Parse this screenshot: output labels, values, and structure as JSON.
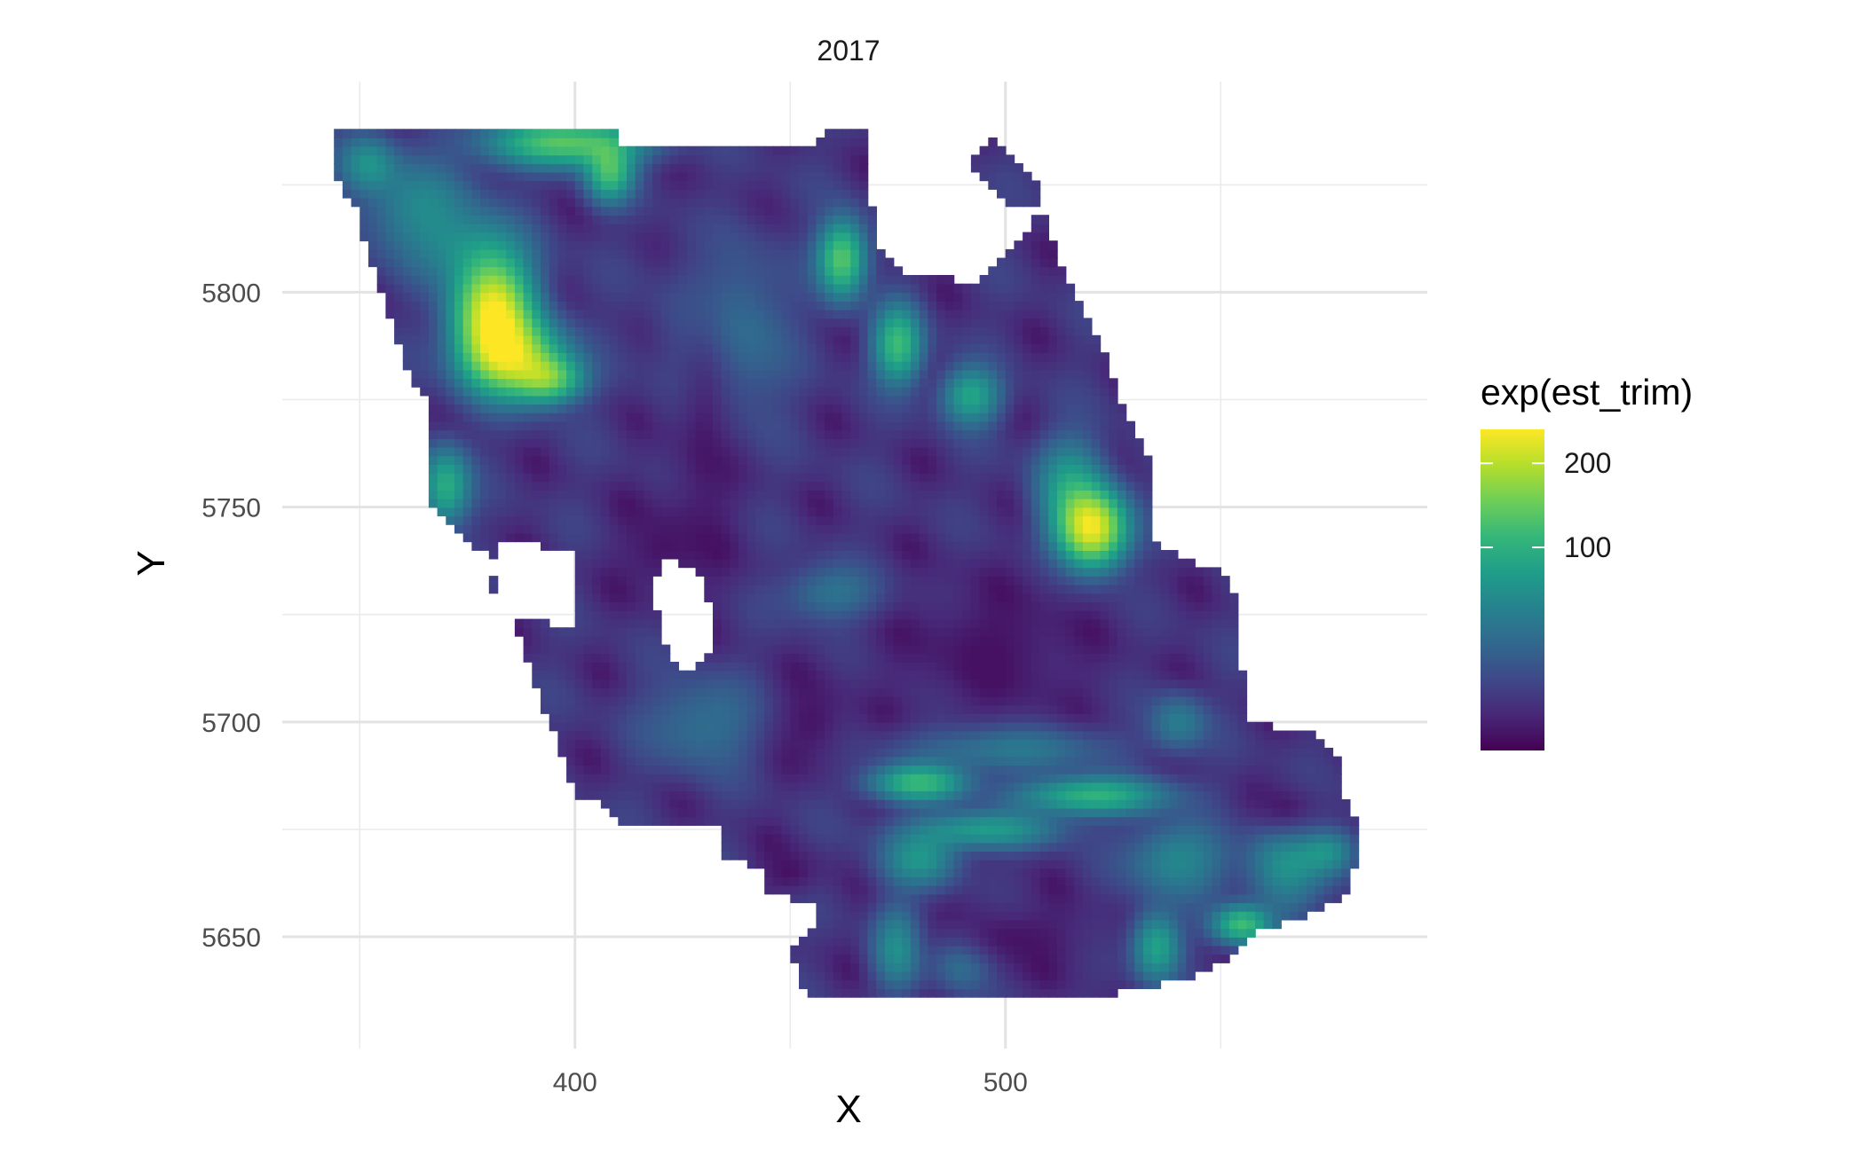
{
  "chart_data": {
    "type": "heatmap",
    "facet_title": "2017",
    "xlabel": "X",
    "ylabel": "Y",
    "xlim": [
      332,
      598
    ],
    "ylim": [
      5624,
      5849
    ],
    "x_ticks": [
      400,
      500
    ],
    "x_minor": [
      350,
      450,
      550
    ],
    "y_ticks": [
      5650,
      5700,
      5750,
      5800
    ],
    "y_minor": [
      5675,
      5725,
      5775,
      5825
    ],
    "legend": {
      "title": "exp(est_trim)",
      "position": "right",
      "ticks": [
        100,
        200
      ],
      "range": [
        1,
        250
      ],
      "colors": [
        "#440154",
        "#482878",
        "#3e4989",
        "#31688e",
        "#26828e",
        "#1f9e89",
        "#35b779",
        "#6ece58",
        "#b5de2b",
        "#fde725"
      ]
    },
    "grid_cells": 5,
    "background_value": 6,
    "region_outline": [
      [
        345,
        5838
      ],
      [
        409,
        5838
      ],
      [
        410,
        5835
      ],
      [
        457,
        5835
      ],
      [
        458,
        5838
      ],
      [
        469,
        5838
      ],
      [
        469,
        5820
      ],
      [
        471,
        5810
      ],
      [
        476,
        5805
      ],
      [
        488,
        5803
      ],
      [
        495,
        5803
      ],
      [
        504,
        5812
      ],
      [
        509,
        5825
      ],
      [
        497,
        5836
      ],
      [
        492,
        5830
      ],
      [
        496,
        5826
      ],
      [
        498,
        5822
      ],
      [
        510,
        5818
      ],
      [
        512,
        5808
      ],
      [
        522,
        5788
      ],
      [
        528,
        5772
      ],
      [
        534,
        5760
      ],
      [
        534,
        5742
      ],
      [
        541,
        5738
      ],
      [
        550,
        5735
      ],
      [
        555,
        5728
      ],
      [
        555,
        5712
      ],
      [
        556,
        5700
      ],
      [
        563,
        5699
      ],
      [
        572,
        5697
      ],
      [
        577,
        5692
      ],
      [
        579,
        5682
      ],
      [
        582,
        5675
      ],
      [
        582,
        5668
      ],
      [
        579,
        5660
      ],
      [
        570,
        5655
      ],
      [
        560,
        5652
      ],
      [
        553,
        5645
      ],
      [
        541,
        5640
      ],
      [
        520,
        5636
      ],
      [
        500,
        5636
      ],
      [
        455,
        5636
      ],
      [
        452,
        5640
      ],
      [
        450,
        5648
      ],
      [
        455,
        5652
      ],
      [
        456,
        5658
      ],
      [
        451,
        5659
      ],
      [
        445,
        5661
      ],
      [
        445,
        5665
      ],
      [
        435,
        5669
      ],
      [
        435,
        5676
      ],
      [
        410,
        5676
      ],
      [
        408,
        5680
      ],
      [
        400,
        5683
      ],
      [
        398,
        5690
      ],
      [
        394,
        5700
      ],
      [
        392,
        5705
      ],
      [
        390,
        5712
      ],
      [
        387,
        5720
      ],
      [
        380,
        5732
      ],
      [
        384,
        5738
      ],
      [
        376,
        5740
      ],
      [
        373,
        5745
      ],
      [
        366,
        5752
      ],
      [
        366,
        5762
      ],
      [
        367,
        5770
      ],
      [
        367,
        5775
      ],
      [
        362,
        5780
      ],
      [
        356,
        5797
      ],
      [
        352,
        5808
      ],
      [
        350,
        5818
      ],
      [
        345,
        5826
      ]
    ],
    "hole_outline": [
      [
        383,
        5742
      ],
      [
        383,
        5725
      ],
      [
        400,
        5722
      ],
      [
        400,
        5740
      ]
    ],
    "hole_outline_2": [
      [
        426,
        5711
      ],
      [
        422,
        5714
      ],
      [
        420,
        5722
      ],
      [
        418,
        5732
      ],
      [
        421,
        5738
      ],
      [
        428,
        5736
      ],
      [
        432,
        5726
      ],
      [
        432,
        5716
      ]
    ],
    "hotspots": [
      {
        "x": 381,
        "y": 5795,
        "value": 240,
        "rx": 8,
        "ry": 12
      },
      {
        "x": 386,
        "y": 5785,
        "value": 160,
        "rx": 10,
        "ry": 8
      },
      {
        "x": 394,
        "y": 5780,
        "value": 120,
        "rx": 7,
        "ry": 5
      },
      {
        "x": 398,
        "y": 5835,
        "value": 130,
        "rx": 16,
        "ry": 5
      },
      {
        "x": 408,
        "y": 5828,
        "value": 110,
        "rx": 5,
        "ry": 6
      },
      {
        "x": 370,
        "y": 5755,
        "value": 90,
        "rx": 5,
        "ry": 8
      },
      {
        "x": 352,
        "y": 5830,
        "value": 55,
        "rx": 6,
        "ry": 6
      },
      {
        "x": 364,
        "y": 5820,
        "value": 45,
        "rx": 12,
        "ry": 10
      },
      {
        "x": 375,
        "y": 5810,
        "value": 40,
        "rx": 12,
        "ry": 8
      },
      {
        "x": 462,
        "y": 5808,
        "value": 130,
        "rx": 5,
        "ry": 8
      },
      {
        "x": 475,
        "y": 5788,
        "value": 110,
        "rx": 5,
        "ry": 8
      },
      {
        "x": 492,
        "y": 5776,
        "value": 80,
        "rx": 6,
        "ry": 6
      },
      {
        "x": 520,
        "y": 5745,
        "value": 245,
        "rx": 7,
        "ry": 8
      },
      {
        "x": 515,
        "y": 5755,
        "value": 70,
        "rx": 7,
        "ry": 10
      },
      {
        "x": 435,
        "y": 5790,
        "value": 40,
        "rx": 12,
        "ry": 18
      },
      {
        "x": 480,
        "y": 5686,
        "value": 110,
        "rx": 10,
        "ry": 4
      },
      {
        "x": 500,
        "y": 5694,
        "value": 45,
        "rx": 20,
        "ry": 5
      },
      {
        "x": 520,
        "y": 5683,
        "value": 100,
        "rx": 15,
        "ry": 4
      },
      {
        "x": 495,
        "y": 5675,
        "value": 70,
        "rx": 15,
        "ry": 4
      },
      {
        "x": 480,
        "y": 5668,
        "value": 60,
        "rx": 8,
        "ry": 6
      },
      {
        "x": 475,
        "y": 5648,
        "value": 80,
        "rx": 5,
        "ry": 8
      },
      {
        "x": 490,
        "y": 5645,
        "value": 55,
        "rx": 6,
        "ry": 6
      },
      {
        "x": 535,
        "y": 5648,
        "value": 90,
        "rx": 5,
        "ry": 7
      },
      {
        "x": 555,
        "y": 5653,
        "value": 110,
        "rx": 6,
        "ry": 4
      },
      {
        "x": 565,
        "y": 5667,
        "value": 55,
        "rx": 8,
        "ry": 10
      },
      {
        "x": 575,
        "y": 5670,
        "value": 55,
        "rx": 6,
        "ry": 5
      },
      {
        "x": 540,
        "y": 5668,
        "value": 50,
        "rx": 10,
        "ry": 8
      },
      {
        "x": 540,
        "y": 5700,
        "value": 40,
        "rx": 6,
        "ry": 6
      },
      {
        "x": 460,
        "y": 5730,
        "value": 35,
        "rx": 10,
        "ry": 6
      },
      {
        "x": 430,
        "y": 5700,
        "value": 30,
        "rx": 12,
        "ry": 10
      }
    ],
    "lowspots": [
      {
        "x": 497,
        "y": 5717,
        "value": 1,
        "rx": 28,
        "ry": 20
      },
      {
        "x": 430,
        "y": 5770,
        "value": 1,
        "rx": 10,
        "ry": 40
      },
      {
        "x": 420,
        "y": 5740,
        "value": 1,
        "rx": 12,
        "ry": 12
      },
      {
        "x": 565,
        "y": 5680,
        "value": 1,
        "rx": 10,
        "ry": 7
      },
      {
        "x": 500,
        "y": 5650,
        "value": 1,
        "rx": 25,
        "ry": 10
      },
      {
        "x": 455,
        "y": 5700,
        "value": 1,
        "rx": 10,
        "ry": 12
      },
      {
        "x": 450,
        "y": 5665,
        "value": 1,
        "rx": 8,
        "ry": 6
      }
    ]
  }
}
